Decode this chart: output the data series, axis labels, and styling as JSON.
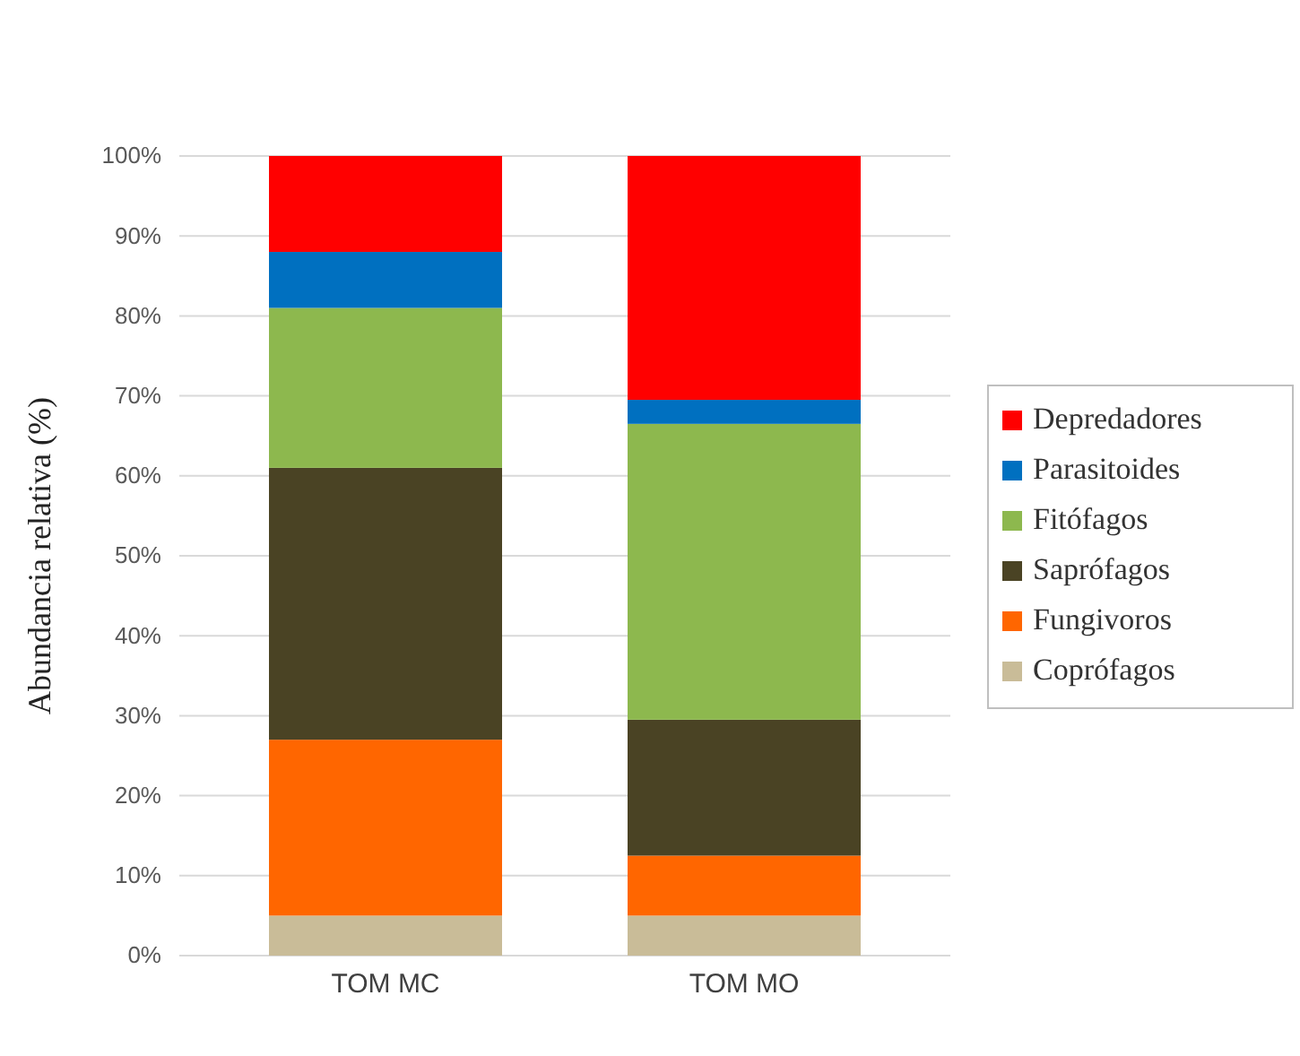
{
  "chart_data": {
    "type": "bar",
    "stacked": true,
    "ylabel": "Abundancia relativa (%)",
    "categories": [
      "TOM MC",
      "TOM MO"
    ],
    "series": [
      {
        "name": "Coprófagos",
        "color": "#c9bc98",
        "values": [
          5,
          5
        ]
      },
      {
        "name": "Fungivoros",
        "color": "#ff6600",
        "values": [
          22,
          7.5
        ]
      },
      {
        "name": "Saprófagos",
        "color": "#4a4324",
        "values": [
          34,
          17
        ]
      },
      {
        "name": "Fitófagos",
        "color": "#8db84e",
        "values": [
          20,
          37
        ]
      },
      {
        "name": "Parasitoides",
        "color": "#0070c0",
        "values": [
          7,
          3
        ]
      },
      {
        "name": "Depredadores",
        "color": "#ff0000",
        "values": [
          12,
          30.5
        ]
      }
    ],
    "ylim": [
      0,
      100
    ],
    "yticks": [
      {
        "value": 0,
        "label": "0%"
      },
      {
        "value": 10,
        "label": "10%"
      },
      {
        "value": 20,
        "label": "20%"
      },
      {
        "value": 30,
        "label": "30%"
      },
      {
        "value": 40,
        "label": "40%"
      },
      {
        "value": 50,
        "label": "50%"
      },
      {
        "value": 60,
        "label": "60%"
      },
      {
        "value": 70,
        "label": "70%"
      },
      {
        "value": 80,
        "label": "80%"
      },
      {
        "value": 90,
        "label": "90%"
      },
      {
        "value": 100,
        "label": "100%"
      }
    ],
    "grid": "y",
    "legend": "right"
  }
}
